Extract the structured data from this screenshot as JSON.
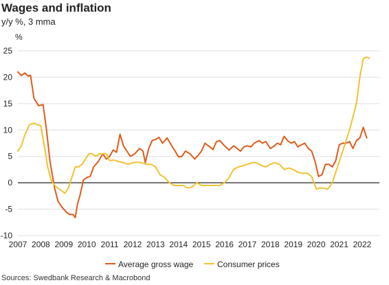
{
  "title": "Wages and inflation",
  "subtitle": "y/y %, 3 mma",
  "source": "Sources: Swedbank Research & Macrobond",
  "colors": {
    "wage": "#e05a1a",
    "cpi": "#f2c12e",
    "zero_line": "#222222",
    "grid": "#dddddd"
  },
  "chart_data": {
    "type": "line",
    "title": "Wages and inflation",
    "subtitle": "y/y %, 3 mma",
    "ylabel": "%",
    "xlabel": "",
    "ylim": [
      -10,
      25
    ],
    "xlim": [
      2007,
      2022.75
    ],
    "yticks": [
      "25",
      "20",
      "15",
      "10",
      "5",
      "0",
      "-5",
      "-10"
    ],
    "xticks": [
      "2007",
      "2008",
      "2009",
      "2010",
      "2011",
      "2012",
      "2013",
      "2014",
      "2015",
      "2016",
      "2017",
      "2018",
      "2019",
      "2020",
      "2021",
      "2022"
    ],
    "grid": "horizontal",
    "legend": "bottom",
    "series": [
      {
        "name": "Average gross wage",
        "color": "#e05a1a",
        "x": [
          2007.0,
          2007.15,
          2007.3,
          2007.45,
          2007.55,
          2007.7,
          2007.9,
          2008.1,
          2008.25,
          2008.4,
          2008.6,
          2008.75,
          2008.9,
          2009.1,
          2009.25,
          2009.4,
          2009.5,
          2009.6,
          2009.7,
          2009.85,
          2010.0,
          2010.15,
          2010.3,
          2010.5,
          2010.7,
          2010.85,
          2011.0,
          2011.15,
          2011.3,
          2011.45,
          2011.6,
          2011.75,
          2011.9,
          2012.1,
          2012.3,
          2012.45,
          2012.55,
          2012.7,
          2012.85,
          2013.0,
          2013.15,
          2013.3,
          2013.5,
          2013.7,
          2013.85,
          2014.0,
          2014.15,
          2014.3,
          2014.5,
          2014.7,
          2014.85,
          2015.0,
          2015.15,
          2015.3,
          2015.5,
          2015.65,
          2015.8,
          2016.0,
          2016.2,
          2016.4,
          2016.55,
          2016.7,
          2016.85,
          2017.0,
          2017.15,
          2017.3,
          2017.5,
          2017.65,
          2017.8,
          2018.0,
          2018.15,
          2018.3,
          2018.45,
          2018.6,
          2018.75,
          2018.9,
          2019.05,
          2019.2,
          2019.35,
          2019.5,
          2019.65,
          2019.8,
          2019.95,
          2020.1,
          2020.25,
          2020.4,
          2020.55,
          2020.7,
          2020.85,
          2021.0,
          2021.15,
          2021.3,
          2021.45,
          2021.6,
          2021.75,
          2021.9,
          2022.05,
          2022.2
        ],
        "values": [
          21.0,
          20.3,
          20.8,
          20.2,
          20.4,
          16.0,
          14.6,
          14.8,
          10.0,
          4.0,
          -1.0,
          -3.5,
          -4.5,
          -5.5,
          -6.0,
          -6.0,
          -6.6,
          -4.0,
          -2.5,
          0.5,
          1.0,
          1.2,
          3.0,
          4.0,
          5.5,
          4.5,
          5.0,
          6.2,
          5.8,
          9.2,
          7.0,
          6.0,
          5.0,
          5.5,
          6.5,
          6.0,
          3.8,
          6.5,
          8.0,
          8.2,
          8.6,
          7.5,
          8.5,
          7.0,
          6.0,
          4.9,
          5.0,
          6.0,
          5.5,
          4.5,
          5.2,
          6.0,
          7.5,
          7.0,
          6.3,
          7.8,
          8.0,
          7.0,
          6.2,
          7.0,
          6.5,
          6.0,
          6.8,
          7.0,
          6.8,
          7.5,
          8.0,
          7.5,
          7.8,
          6.5,
          6.9,
          7.5,
          7.2,
          8.8,
          8.0,
          7.5,
          7.8,
          6.8,
          7.2,
          7.5,
          6.5,
          6.0,
          4.0,
          1.2,
          1.5,
          3.5,
          3.5,
          3.0,
          4.2,
          7.2,
          7.5,
          7.5,
          7.8,
          6.5,
          8.0,
          8.5,
          10.5,
          8.5
        ]
      },
      {
        "name": "Consumer prices",
        "color": "#f2c12e",
        "x": [
          2007.0,
          2007.15,
          2007.3,
          2007.5,
          2007.7,
          2007.85,
          2008.0,
          2008.15,
          2008.3,
          2008.45,
          2008.6,
          2008.75,
          2008.9,
          2009.05,
          2009.2,
          2009.35,
          2009.5,
          2009.65,
          2009.8,
          2009.95,
          2010.1,
          2010.25,
          2010.4,
          2010.55,
          2010.7,
          2010.85,
          2011.0,
          2011.2,
          2011.4,
          2011.6,
          2011.8,
          2012.0,
          2012.2,
          2012.4,
          2012.6,
          2012.8,
          2013.0,
          2013.2,
          2013.4,
          2013.6,
          2013.8,
          2014.0,
          2014.2,
          2014.4,
          2014.6,
          2014.8,
          2015.0,
          2015.2,
          2015.4,
          2015.6,
          2015.8,
          2016.0,
          2016.2,
          2016.4,
          2016.6,
          2016.8,
          2017.0,
          2017.2,
          2017.4,
          2017.6,
          2017.8,
          2018.0,
          2018.2,
          2018.4,
          2018.6,
          2018.8,
          2019.0,
          2019.2,
          2019.4,
          2019.6,
          2019.8,
          2020.0,
          2020.15,
          2020.3,
          2020.5,
          2020.7,
          2020.85,
          2021.0,
          2021.15,
          2021.3,
          2021.45,
          2021.6,
          2021.75,
          2021.9,
          2022.05,
          2022.2,
          2022.3
        ],
        "values": [
          6.0,
          7.0,
          9.0,
          11.0,
          11.3,
          11.0,
          10.8,
          7.0,
          3.0,
          0.5,
          -0.5,
          -1.0,
          -1.5,
          -2.0,
          -1.0,
          1.0,
          3.0,
          3.0,
          3.5,
          4.5,
          5.5,
          5.5,
          5.0,
          5.5,
          5.5,
          5.5,
          4.2,
          4.3,
          4.0,
          3.8,
          3.5,
          3.8,
          3.9,
          3.8,
          3.5,
          3.5,
          3.0,
          1.5,
          1.0,
          0.0,
          -0.5,
          -0.5,
          -0.5,
          -1.0,
          -0.8,
          0.0,
          -0.5,
          -0.5,
          -0.5,
          -0.5,
          -0.5,
          0.0,
          1.0,
          2.5,
          3.0,
          3.2,
          3.5,
          3.8,
          3.8,
          3.3,
          3.0,
          3.5,
          3.8,
          3.5,
          2.5,
          2.8,
          2.5,
          2.0,
          1.8,
          1.8,
          1.2,
          -1.2,
          -1.0,
          -1.0,
          -1.2,
          0.0,
          2.0,
          4.0,
          6.0,
          8.0,
          10.0,
          12.5,
          15.0,
          20.0,
          23.5,
          23.8,
          23.6
        ]
      }
    ]
  }
}
